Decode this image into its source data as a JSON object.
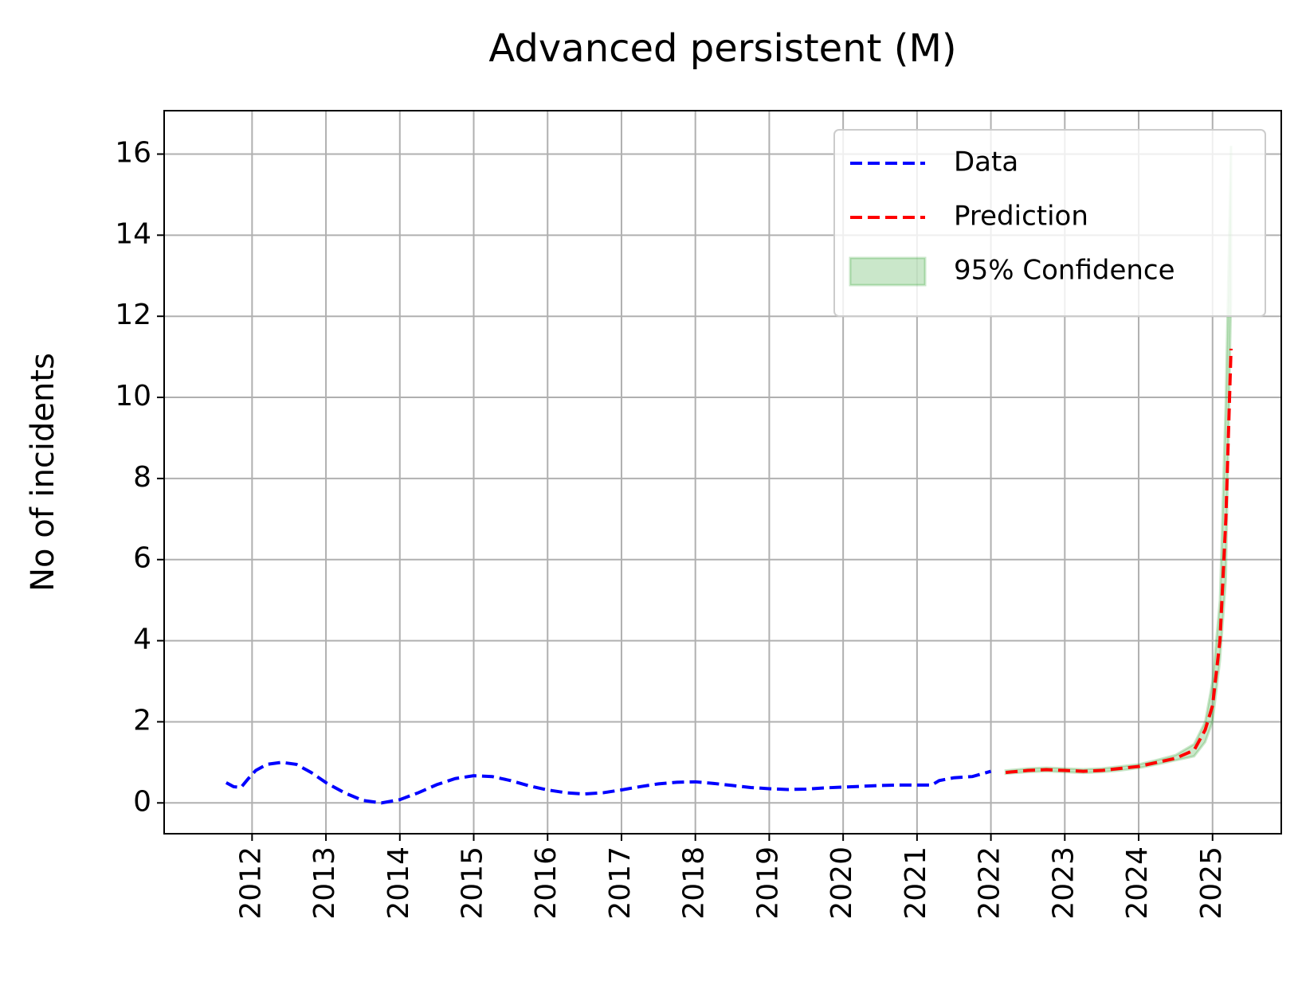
{
  "chart_data": {
    "type": "line",
    "title": "Advanced persistent (M)",
    "y_label": "No of incidents",
    "xlim": [
      2010.81,
      2025.93
    ],
    "ylim": [
      -0.76,
      17.07
    ],
    "xticks": [
      2012,
      2013,
      2014,
      2015,
      2016,
      2017,
      2018,
      2019,
      2020,
      2021,
      2022,
      2023,
      2024,
      2025
    ],
    "yticks": [
      0,
      2,
      4,
      6,
      8,
      10,
      12,
      14,
      16
    ],
    "grid": true,
    "legend": "upper right",
    "series": [
      {
        "name": "Data",
        "color": "#0000ff",
        "style": "dashed",
        "x": [
          2011.65,
          2011.75,
          2011.85,
          2011.95,
          2012.05,
          2012.2,
          2012.4,
          2012.6,
          2012.8,
          2013.0,
          2013.25,
          2013.5,
          2013.75,
          2014.0,
          2014.25,
          2014.5,
          2014.75,
          2015.0,
          2015.25,
          2015.5,
          2015.75,
          2016.0,
          2016.25,
          2016.5,
          2016.75,
          2017.0,
          2017.25,
          2017.5,
          2017.75,
          2018.0,
          2018.25,
          2018.5,
          2018.75,
          2019.0,
          2019.25,
          2019.5,
          2019.75,
          2020.0,
          2020.25,
          2020.5,
          2020.75,
          2021.0,
          2021.2,
          2021.3,
          2021.5,
          2021.75,
          2022.0
        ],
        "values": [
          0.5,
          0.4,
          0.38,
          0.6,
          0.8,
          0.95,
          1.0,
          0.95,
          0.75,
          0.5,
          0.25,
          0.06,
          0.0,
          0.08,
          0.25,
          0.45,
          0.6,
          0.67,
          0.65,
          0.55,
          0.42,
          0.32,
          0.25,
          0.22,
          0.25,
          0.32,
          0.4,
          0.47,
          0.51,
          0.52,
          0.48,
          0.43,
          0.38,
          0.35,
          0.33,
          0.34,
          0.37,
          0.39,
          0.41,
          0.43,
          0.44,
          0.44,
          0.44,
          0.55,
          0.62,
          0.65,
          0.78
        ]
      },
      {
        "name": "Prediction",
        "color": "#ff0000",
        "style": "dashed",
        "x": [
          2022.2,
          2022.5,
          2022.75,
          2023.0,
          2023.25,
          2023.5,
          2023.75,
          2024.0,
          2024.25,
          2024.5,
          2024.75,
          2024.9,
          2025.0,
          2025.1,
          2025.18,
          2025.25
        ],
        "values": [
          0.75,
          0.8,
          0.82,
          0.8,
          0.78,
          0.8,
          0.85,
          0.9,
          1.0,
          1.1,
          1.3,
          1.8,
          2.4,
          4.0,
          7.0,
          11.2
        ]
      },
      {
        "name": "95% Confidence",
        "color": "#2ca02c",
        "style": "band",
        "x": [
          2022.2,
          2022.5,
          2022.75,
          2023.0,
          2023.25,
          2023.5,
          2023.75,
          2024.0,
          2024.25,
          2024.5,
          2024.75,
          2024.9,
          2025.0,
          2025.1,
          2025.18,
          2025.25
        ],
        "lower": [
          0.72,
          0.76,
          0.78,
          0.76,
          0.74,
          0.76,
          0.8,
          0.86,
          0.95,
          1.05,
          1.15,
          1.5,
          2.0,
          3.5,
          5.5,
          12.5
        ],
        "upper": [
          0.8,
          0.85,
          0.87,
          0.85,
          0.83,
          0.85,
          0.9,
          0.95,
          1.06,
          1.18,
          1.45,
          2.0,
          3.0,
          5.0,
          10.0,
          16.2
        ]
      }
    ]
  }
}
